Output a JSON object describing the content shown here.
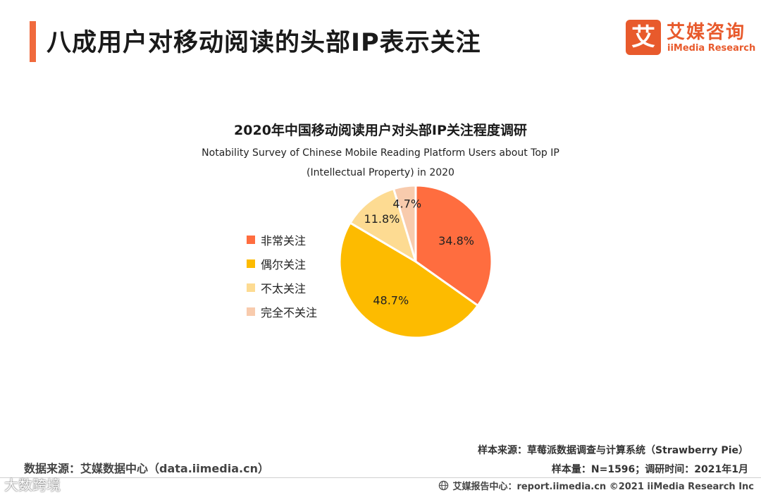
{
  "header": {
    "title": "八成用户对移动阅读的头部IP表示关注",
    "accent_color": "#f06a3d"
  },
  "logo": {
    "mark": "艾",
    "name_cn": "艾媒咨询",
    "name_en": "iiMedia Research",
    "color": "#e85a2c"
  },
  "chart_data": {
    "type": "pie",
    "title": "2020年中国移动阅读用户对头部IP关注程度调研",
    "subtitle": "Notability Survey of  Chinese Mobile Reading Platform Users about Top IP (Intellectual Property) in 2020",
    "categories": [
      "非常关注",
      "偶尔关注",
      "不太关注",
      "完全不关注"
    ],
    "values": [
      34.8,
      48.7,
      11.8,
      4.7
    ],
    "value_labels": [
      "34.8%",
      "48.7%",
      "11.8%",
      "4.7%"
    ],
    "colors": [
      "#ff6d3f",
      "#fdbb00",
      "#fddb92",
      "#f8cbad"
    ],
    "legend_position": "left"
  },
  "footer": {
    "data_source": "数据来源：艾媒数据中心（data.iimedia.cn）",
    "sample_source": "样本来源：草莓派数据调查与计算系统（Strawberry Pie）",
    "sample_size": "样本量：N=1596；调研时间：2021年1月",
    "copyright": "艾媒报告中心：report.iimedia.cn   ©2021  iiMedia Research  Inc"
  },
  "watermark": "大数跨境"
}
